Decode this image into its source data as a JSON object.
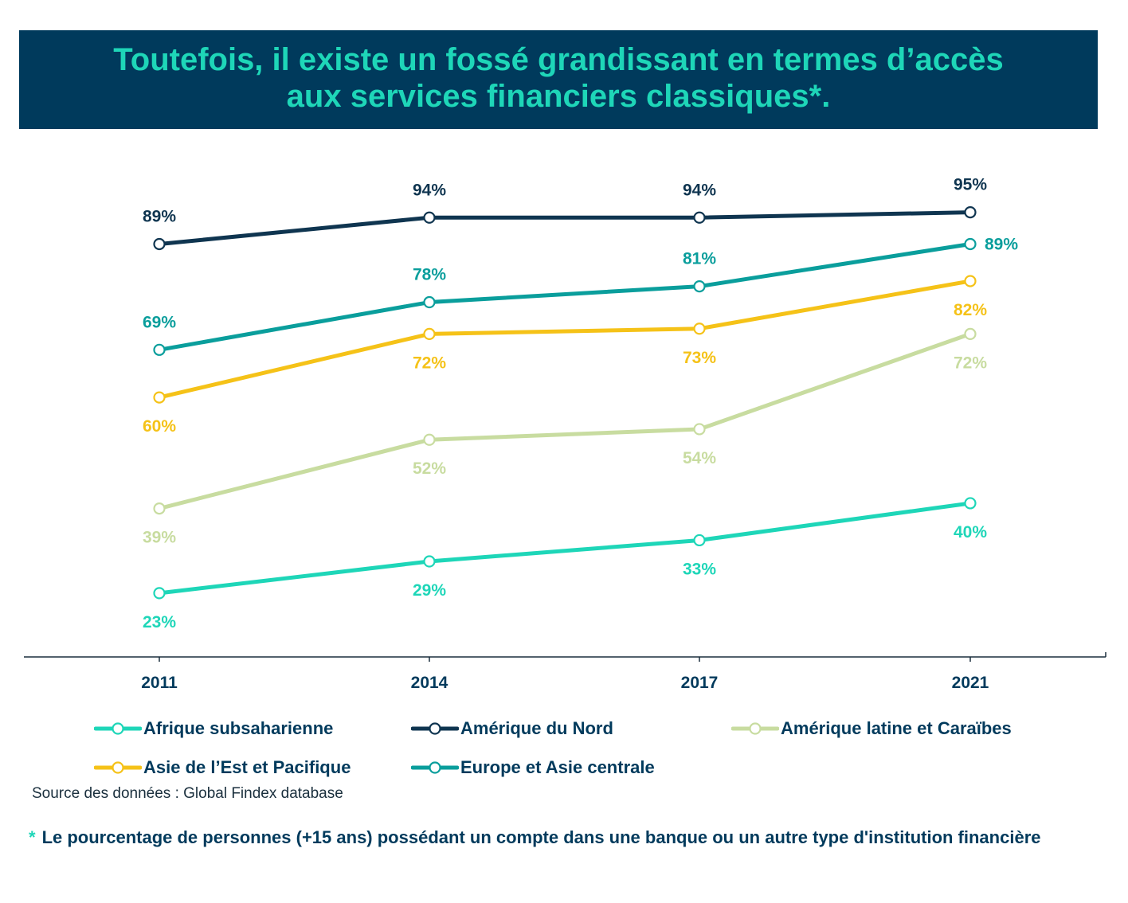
{
  "title": {
    "line1": "Toutefois, il existe un fossé grandissant en termes d’accès",
    "line2": "aux services financiers classiques*."
  },
  "colors": {
    "banner": "#003a5c",
    "title_text": "#1ed6b8",
    "axis": "#1a2f3d"
  },
  "chart_data": {
    "type": "line",
    "title": "Toutefois, il existe un fossé grandissant en termes d’accès aux services financiers classiques*.",
    "xlabel": "",
    "ylabel": "",
    "categories": [
      "2011",
      "2014",
      "2017",
      "2021"
    ],
    "ylim": [
      15,
      100
    ],
    "grid": false,
    "legend_position": "bottom",
    "series": [
      {
        "name": "Afrique subsaharienne",
        "color": "#1ed6b8",
        "values": [
          23,
          29,
          33,
          40
        ],
        "labels": [
          "23%",
          "29%",
          "33%",
          "40%"
        ],
        "label_pos": [
          "below",
          "below",
          "below",
          "below"
        ]
      },
      {
        "name": "Amérique du Nord",
        "color": "#0f3550",
        "values": [
          89,
          94,
          94,
          95
        ],
        "labels": [
          "89%",
          "94%",
          "94%",
          "95%"
        ],
        "label_pos": [
          "above",
          "above",
          "above",
          "above"
        ]
      },
      {
        "name": "Amérique latine et Caraïbes",
        "color": "#c8dca0",
        "values": [
          39,
          52,
          54,
          72
        ],
        "labels": [
          "39%",
          "52%",
          "54%",
          "72%"
        ],
        "label_pos": [
          "below",
          "below",
          "below",
          "below"
        ]
      },
      {
        "name": "Asie de l’Est et Pacifique",
        "color": "#f5c218",
        "values": [
          60,
          72,
          73,
          82
        ],
        "labels": [
          "60%",
          "72%",
          "73%",
          "82%"
        ],
        "label_pos": [
          "below",
          "below",
          "below",
          "below"
        ]
      },
      {
        "name": "Europe et Asie centrale",
        "color": "#0a9e9c",
        "values": [
          69,
          78,
          81,
          89
        ],
        "labels": [
          "69%",
          "78%",
          "81%",
          "89%"
        ],
        "label_pos": [
          "above",
          "above",
          "above",
          "right"
        ]
      }
    ]
  },
  "source": "Source des données : Global Findex database",
  "footnote": {
    "star": "*",
    "text": "Le pourcentage de personnes (+15 ans) possédant un compte dans une banque ou un autre type d'institution financière"
  }
}
